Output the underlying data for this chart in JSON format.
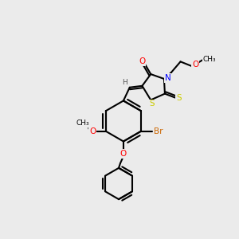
{
  "background_color": "#ebebeb",
  "bond_color": "#000000",
  "atom_colors": {
    "O": "#ff0000",
    "N": "#0000ff",
    "S": "#cccc00",
    "Br": "#cc6600",
    "H": "#555555",
    "C": "#000000"
  },
  "figsize": [
    3.0,
    3.0
  ],
  "dpi": 100
}
